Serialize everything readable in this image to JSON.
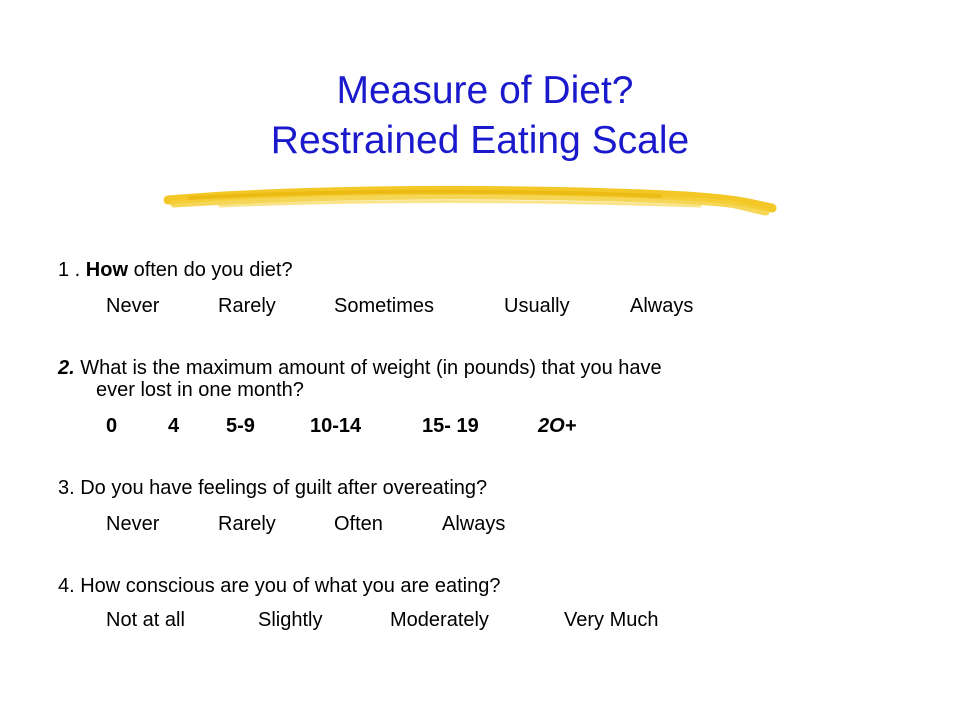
{
  "title": {
    "line1": "Measure of Diet?",
    "line2": "Restrained Eating Scale"
  },
  "colors": {
    "title": "#1a1acc",
    "underline_stroke": "#f2c41a"
  },
  "questions": [
    {
      "prefix": "1 . ",
      "emphasis": "How",
      "rest": " often do you diet?",
      "options": [
        "Never",
        "Rarely",
        "Sometimes",
        "Usually",
        "Always"
      ]
    },
    {
      "prefix": "2.",
      "rest": " What is the maximum amount of weight (in pounds) that you have",
      "rest_line2": "ever lost in one month?",
      "options": [
        "0",
        "4",
        "5-9",
        "10-14",
        "15- 19",
        "2O+"
      ]
    },
    {
      "text": "3. Do you have feelings of guilt after overeating?",
      "options": [
        "Never",
        "Rarely",
        "Often",
        "Always"
      ]
    },
    {
      "text": "4. How conscious are you of what you are eating?",
      "options": [
        "Not at all",
        "Slightly",
        "Moderately",
        "Very Much"
      ]
    }
  ]
}
